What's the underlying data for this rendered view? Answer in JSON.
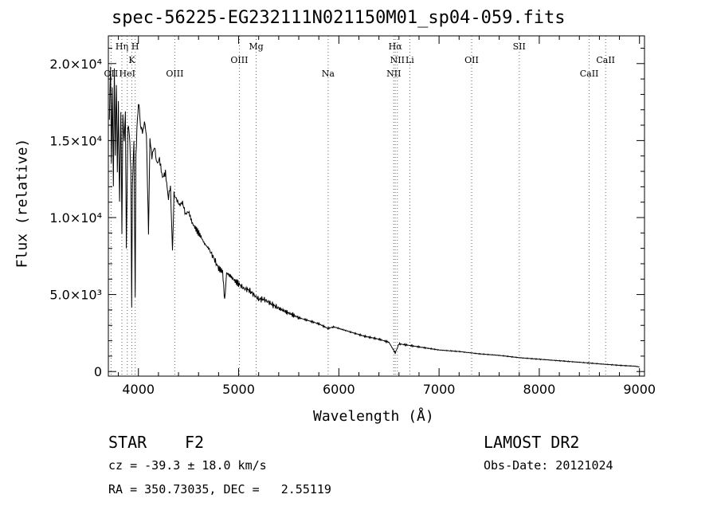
{
  "header": {
    "title": "spec-56225-EG232111N021150M01_sp04-059.fits"
  },
  "info": {
    "object_class": "STAR",
    "subclass": "F2",
    "survey": "LAMOST DR2",
    "cz": "cz = -39.3 ± 18.0 km/s",
    "obs_date": "Obs-Date: 20121024",
    "coords": "RA = 350.73035, DEC =   2.55119"
  },
  "chart_data": {
    "type": "line",
    "xlabel": "Wavelength (Å)",
    "ylabel": "Flux (relative)",
    "xlim": [
      3700,
      9050
    ],
    "ylim": [
      -300,
      21800
    ],
    "x_ticks": [
      4000,
      5000,
      6000,
      7000,
      8000,
      9000
    ],
    "y_ticks": [
      {
        "value": 0,
        "label": "0"
      },
      {
        "value": 5000,
        "label": "5.0×10³"
      },
      {
        "value": 10000,
        "label": "1.0×10⁴"
      },
      {
        "value": 15000,
        "label": "1.5×10⁴"
      },
      {
        "value": 20000,
        "label": "2.0×10⁴"
      }
    ],
    "spectral_lines": [
      {
        "label": "OII",
        "wavelength": 3727,
        "row": 3
      },
      {
        "label": "Hη",
        "wavelength": 3835,
        "row": 1
      },
      {
        "label": "HeI",
        "wavelength": 3889,
        "row": 3
      },
      {
        "label": "K",
        "wavelength": 3934,
        "row": 2
      },
      {
        "label": "H",
        "wavelength": 3968,
        "row": 1
      },
      {
        "label": "OIII",
        "wavelength": 4363,
        "row": 3
      },
      {
        "label": "OIII",
        "wavelength": 5007,
        "row": 2
      },
      {
        "label": "Mg",
        "wavelength": 5175,
        "row": 1
      },
      {
        "label": "Na",
        "wavelength": 5893,
        "row": 3
      },
      {
        "label": "NII",
        "wavelength": 6548,
        "row": 3
      },
      {
        "label": "Hα",
        "wavelength": 6563,
        "row": 1
      },
      {
        "label": "NII",
        "wavelength": 6584,
        "row": 2
      },
      {
        "label": "Li",
        "wavelength": 6708,
        "row": 2
      },
      {
        "label": "OII",
        "wavelength": 7325,
        "row": 2
      },
      {
        "label": "SII",
        "wavelength": 7800,
        "row": 1
      },
      {
        "label": "CaII",
        "wavelength": 8498,
        "row": 3
      },
      {
        "label": "CaII",
        "wavelength": 8662,
        "row": 2
      }
    ],
    "series": [
      {
        "color": "#000000",
        "points": [
          [
            3710,
            16500
          ],
          [
            3722,
            19800
          ],
          [
            3730,
            13500
          ],
          [
            3740,
            18500
          ],
          [
            3750,
            12000
          ],
          [
            3760,
            19500
          ],
          [
            3770,
            14000
          ],
          [
            3780,
            18800
          ],
          [
            3790,
            13000
          ],
          [
            3800,
            17500
          ],
          [
            3812,
            11000
          ],
          [
            3825,
            17000
          ],
          [
            3835,
            9000
          ],
          [
            3845,
            16500
          ],
          [
            3858,
            15000
          ],
          [
            3870,
            16800
          ],
          [
            3880,
            8000
          ],
          [
            3895,
            16000
          ],
          [
            3910,
            15500
          ],
          [
            3925,
            13000
          ],
          [
            3933,
            4200
          ],
          [
            3940,
            12000
          ],
          [
            3955,
            15000
          ],
          [
            3968,
            5000
          ],
          [
            3975,
            14000
          ],
          [
            3990,
            16500
          ],
          [
            4005,
            17500
          ],
          [
            4020,
            16000
          ],
          [
            4040,
            15500
          ],
          [
            4060,
            16200
          ],
          [
            4080,
            15300
          ],
          [
            4101,
            9000
          ],
          [
            4115,
            15000
          ],
          [
            4135,
            14000
          ],
          [
            4160,
            14600
          ],
          [
            4185,
            13500
          ],
          [
            4210,
            13800
          ],
          [
            4240,
            12600
          ],
          [
            4270,
            12900
          ],
          [
            4300,
            11200
          ],
          [
            4320,
            12100
          ],
          [
            4340,
            7700
          ],
          [
            4355,
            11500
          ],
          [
            4380,
            11200
          ],
          [
            4410,
            10800
          ],
          [
            4440,
            11000
          ],
          [
            4470,
            10200
          ],
          [
            4500,
            10400
          ],
          [
            4540,
            9600
          ],
          [
            4580,
            9200
          ],
          [
            4620,
            8800
          ],
          [
            4660,
            8300
          ],
          [
            4700,
            8000
          ],
          [
            4750,
            7400
          ],
          [
            4800,
            6700
          ],
          [
            4840,
            6500
          ],
          [
            4861,
            4600
          ],
          [
            4880,
            6400
          ],
          [
            4920,
            6200
          ],
          [
            4960,
            5900
          ],
          [
            5000,
            5700
          ],
          [
            5050,
            5400
          ],
          [
            5100,
            5300
          ],
          [
            5150,
            5000
          ],
          [
            5200,
            4700
          ],
          [
            5250,
            4700
          ],
          [
            5300,
            4500
          ],
          [
            5350,
            4300
          ],
          [
            5400,
            4100
          ],
          [
            5500,
            3800
          ],
          [
            5600,
            3500
          ],
          [
            5700,
            3300
          ],
          [
            5800,
            3100
          ],
          [
            5890,
            2800
          ],
          [
            5950,
            2900
          ],
          [
            6100,
            2600
          ],
          [
            6250,
            2300
          ],
          [
            6400,
            2100
          ],
          [
            6500,
            1900
          ],
          [
            6563,
            1200
          ],
          [
            6600,
            1800
          ],
          [
            6700,
            1700
          ],
          [
            6800,
            1600
          ],
          [
            6900,
            1500
          ],
          [
            7000,
            1400
          ],
          [
            7200,
            1300
          ],
          [
            7400,
            1150
          ],
          [
            7600,
            1050
          ],
          [
            7800,
            900
          ],
          [
            8000,
            800
          ],
          [
            8200,
            700
          ],
          [
            8400,
            600
          ],
          [
            8600,
            500
          ],
          [
            8800,
            400
          ],
          [
            8950,
            350
          ],
          [
            9000,
            300
          ]
        ]
      }
    ]
  }
}
